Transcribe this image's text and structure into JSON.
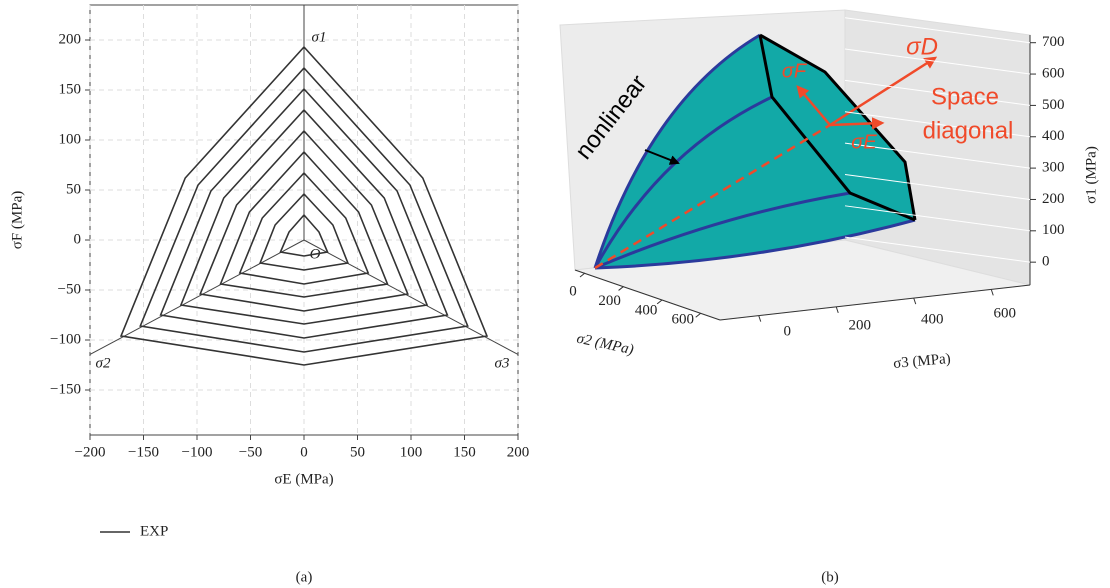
{
  "chart_data": [
    {
      "type": "line",
      "xlabel": "σE (MPa)",
      "ylabel": "σF (MPa)",
      "caption": "(a)",
      "annotations": [
        "σ1",
        "σ2",
        "σ3",
        "O"
      ],
      "xlim": [
        -200,
        200
      ],
      "ylim": [
        -195,
        235
      ],
      "xticks": [
        {
          "value": -200,
          "label": "−200"
        },
        {
          "value": -150,
          "label": "−150"
        },
        {
          "value": -100,
          "label": "−100"
        },
        {
          "value": -50,
          "label": "−50"
        },
        0,
        50,
        100,
        150,
        200
      ],
      "yticks": [
        {
          "value": -150,
          "label": "−150"
        },
        {
          "value": -100,
          "label": "−100"
        },
        {
          "value": -50,
          "label": "−50"
        },
        0,
        50,
        100,
        150,
        200
      ],
      "grid": true,
      "series": [
        {
          "name": "EXP",
          "color": "#333333",
          "x": [
            0,
            14,
            22,
            0,
            -22,
            -14,
            0,
            null,
            0,
            27,
            41,
            0,
            -41,
            -27,
            0,
            null,
            0,
            39,
            60,
            0,
            -60,
            -39,
            0,
            null,
            0,
            51,
            78,
            0,
            -78,
            -51,
            0,
            null,
            0,
            63,
            97,
            0,
            -97,
            -63,
            0,
            null,
            0,
            75,
            115,
            0,
            -115,
            -75,
            0,
            null,
            0,
            87,
            134,
            0,
            -134,
            -87,
            0,
            null,
            0,
            99,
            153,
            0,
            -153,
            -99,
            0,
            null,
            0,
            111,
            171,
            0,
            -171,
            -111,
            0
          ],
          "values": [
            25,
            8,
            -12,
            -16,
            -12,
            8,
            25,
            null,
            46,
            15,
            -23,
            -30,
            -23,
            15,
            46,
            null,
            67,
            22,
            -33,
            -44,
            -33,
            22,
            67,
            null,
            88,
            28,
            -44,
            -57,
            -44,
            28,
            88,
            null,
            109,
            35,
            -54,
            -71,
            -54,
            35,
            109,
            null,
            130,
            42,
            -65,
            -84,
            -65,
            42,
            130,
            null,
            151,
            49,
            -75,
            -98,
            -75,
            49,
            151,
            null,
            172,
            55,
            -86,
            -112,
            -86,
            55,
            172,
            null,
            193,
            62,
            -96,
            -125,
            -96,
            62,
            193
          ]
        }
      ]
    },
    {
      "type": "surface3d",
      "caption": "(b)",
      "xlabel": "σ2 (MPa)",
      "ylabel": "σ3 (MPa)",
      "zlabel": "σ1 (MPa)",
      "annotations": [
        "nonlinear",
        "σD",
        "σF",
        "σE",
        "Space",
        "diagonal"
      ],
      "xlim": [
        0,
        700
      ],
      "ylim": [
        -100,
        700
      ],
      "zlim": [
        -25,
        715
      ],
      "xticks": [
        0,
        200,
        400,
        600
      ],
      "yticks": [
        0,
        200,
        400,
        600
      ],
      "zticks": [
        0,
        100,
        200,
        300,
        400,
        500,
        600,
        700
      ]
    }
  ]
}
